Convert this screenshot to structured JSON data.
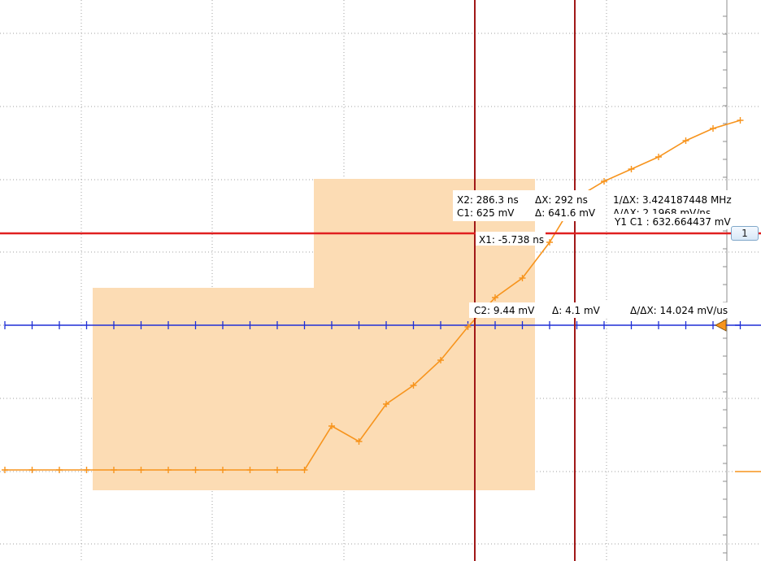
{
  "colors": {
    "background": "#ffffff",
    "grid": "#a0a0a0",
    "cursor_red": "#e02020",
    "cursor_dark_red": "#a01818",
    "trace_orange": "#f7941d",
    "trace_blue": "#1f2fd6",
    "zoom_region": "#fcdcb4"
  },
  "channel_marker": {
    "label": "1",
    "icon": "triangle-marker-icon"
  },
  "cursor_readouts": {
    "x2": "X2: 286.3 ns",
    "c1": "C1: 625 mV",
    "dx": "ΔX: 292 ns",
    "dv_c1": "Δ: 641.6 mV",
    "inv_dx": "1/ΔX: 3.424187448 MHz",
    "slope_c1": "Δ/ΔX: 2.1968 mV/ns",
    "y1_c1": "Y1 C1 : 632.664437 mV",
    "x1": "X1: -5.738 ns",
    "c2": "C2: 9.44 mV",
    "dv_c2": "Δ: 4.1 mV",
    "slope_c2": "Δ/ΔX: 14.024 mV/us"
  },
  "chart_data": {
    "type": "line",
    "series": [
      {
        "values": [
          0,
          0,
          0,
          0,
          0,
          0,
          0,
          0,
          0,
          0,
          0,
          0,
          0,
          0,
          0,
          0,
          0,
          0,
          0,
          0,
          0,
          0,
          0,
          0,
          0,
          0,
          0,
          0
        ]
      },
      {
        "values": [
          0,
          0,
          0,
          0,
          0,
          0,
          0,
          0,
          0,
          0,
          0,
          0,
          54,
          35,
          81,
          104,
          135,
          176,
          212,
          236,
          280,
          335,
          355,
          370,
          385,
          405,
          420,
          430
        ]
      }
    ]
  }
}
